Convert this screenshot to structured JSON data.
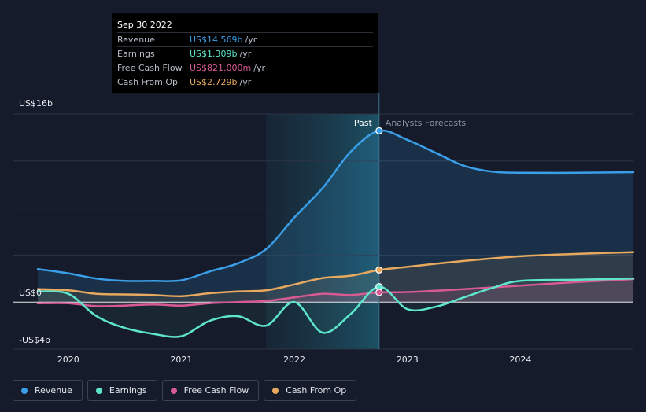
{
  "tooltip": {
    "date": "Sep 30 2022",
    "rows": [
      {
        "label": "Revenue",
        "value": "US$14.569b",
        "unit": "/yr",
        "color": "#3a9fe8"
      },
      {
        "label": "Earnings",
        "value": "US$1.309b",
        "unit": "/yr",
        "color": "#5ee6cc"
      },
      {
        "label": "Free Cash Flow",
        "value": "US$821.000m",
        "unit": "/yr",
        "color": "#d75a93"
      },
      {
        "label": "Cash From Op",
        "value": "US$2.729b",
        "unit": "/yr",
        "color": "#e8a95e"
      }
    ]
  },
  "legend": [
    {
      "label": "Revenue",
      "color": "#3a9fe8"
    },
    {
      "label": "Earnings",
      "color": "#5ee6cc"
    },
    {
      "label": "Free Cash Flow",
      "color": "#d75a93"
    },
    {
      "label": "Cash From Op",
      "color": "#e8a95e"
    }
  ],
  "chart_data": {
    "type": "line",
    "y_tick_labels": [
      "US$16b",
      "US$0",
      "-US$4b"
    ],
    "ylim": [
      -4,
      16
    ],
    "xlim": [
      2019.73,
      2025.0
    ],
    "x_tick_labels": [
      "2020",
      "2021",
      "2022",
      "2023",
      "2024"
    ],
    "x_ticks": [
      2020,
      2021,
      2022,
      2023,
      2024
    ],
    "past_label": "Past",
    "forecast_label": "Analysts Forecasts",
    "divider_x": 2022.75,
    "highlight_start": 2021.75,
    "grid": true,
    "series": [
      {
        "name": "Revenue",
        "color": "#3a9fe8",
        "points": [
          [
            2019.73,
            2.8
          ],
          [
            2020.0,
            2.45
          ],
          [
            2020.25,
            2.0
          ],
          [
            2020.5,
            1.8
          ],
          [
            2020.75,
            1.8
          ],
          [
            2021.0,
            1.85
          ],
          [
            2021.25,
            2.6
          ],
          [
            2021.5,
            3.3
          ],
          [
            2021.75,
            4.5
          ],
          [
            2022.0,
            7.2
          ],
          [
            2022.25,
            9.7
          ],
          [
            2022.5,
            12.8
          ],
          [
            2022.75,
            14.569
          ],
          [
            2023.0,
            13.8
          ],
          [
            2023.25,
            12.7
          ],
          [
            2023.5,
            11.6
          ],
          [
            2023.75,
            11.1
          ],
          [
            2024.0,
            11.0
          ],
          [
            2024.5,
            11.0
          ],
          [
            2025.0,
            11.05
          ]
        ]
      },
      {
        "name": "Earnings",
        "color": "#5ee6cc",
        "points": [
          [
            2019.73,
            0.9
          ],
          [
            2020.0,
            0.7
          ],
          [
            2020.25,
            -1.2
          ],
          [
            2020.5,
            -2.2
          ],
          [
            2020.75,
            -2.7
          ],
          [
            2021.0,
            -2.9
          ],
          [
            2021.25,
            -1.6
          ],
          [
            2021.5,
            -1.2
          ],
          [
            2021.75,
            -2.0
          ],
          [
            2022.0,
            0.0
          ],
          [
            2022.25,
            -2.6
          ],
          [
            2022.5,
            -1.0
          ],
          [
            2022.75,
            1.309
          ],
          [
            2023.0,
            -0.6
          ],
          [
            2023.25,
            -0.4
          ],
          [
            2023.5,
            0.4
          ],
          [
            2023.75,
            1.2
          ],
          [
            2024.0,
            1.8
          ],
          [
            2024.5,
            1.9
          ],
          [
            2025.0,
            2.0
          ]
        ]
      },
      {
        "name": "Free Cash Flow",
        "color": "#d75a93",
        "points": [
          [
            2019.73,
            -0.1
          ],
          [
            2020.0,
            -0.1
          ],
          [
            2020.25,
            -0.35
          ],
          [
            2020.5,
            -0.3
          ],
          [
            2020.75,
            -0.2
          ],
          [
            2021.0,
            -0.3
          ],
          [
            2021.25,
            -0.1
          ],
          [
            2021.5,
            0.0
          ],
          [
            2021.75,
            0.1
          ],
          [
            2022.0,
            0.4
          ],
          [
            2022.25,
            0.7
          ],
          [
            2022.5,
            0.6
          ],
          [
            2022.75,
            0.821
          ],
          [
            2023.0,
            0.85
          ],
          [
            2023.5,
            1.1
          ],
          [
            2024.0,
            1.4
          ],
          [
            2024.5,
            1.7
          ],
          [
            2025.0,
            1.95
          ]
        ]
      },
      {
        "name": "Cash From Op",
        "color": "#e8a95e",
        "points": [
          [
            2019.73,
            1.1
          ],
          [
            2020.0,
            1.0
          ],
          [
            2020.25,
            0.7
          ],
          [
            2020.5,
            0.65
          ],
          [
            2020.75,
            0.6
          ],
          [
            2021.0,
            0.5
          ],
          [
            2021.25,
            0.75
          ],
          [
            2021.5,
            0.9
          ],
          [
            2021.75,
            1.0
          ],
          [
            2022.0,
            1.5
          ],
          [
            2022.25,
            2.05
          ],
          [
            2022.5,
            2.25
          ],
          [
            2022.75,
            2.729
          ],
          [
            2023.0,
            3.0
          ],
          [
            2023.5,
            3.5
          ],
          [
            2024.0,
            3.9
          ],
          [
            2024.5,
            4.1
          ],
          [
            2025.0,
            4.25
          ]
        ]
      }
    ]
  }
}
